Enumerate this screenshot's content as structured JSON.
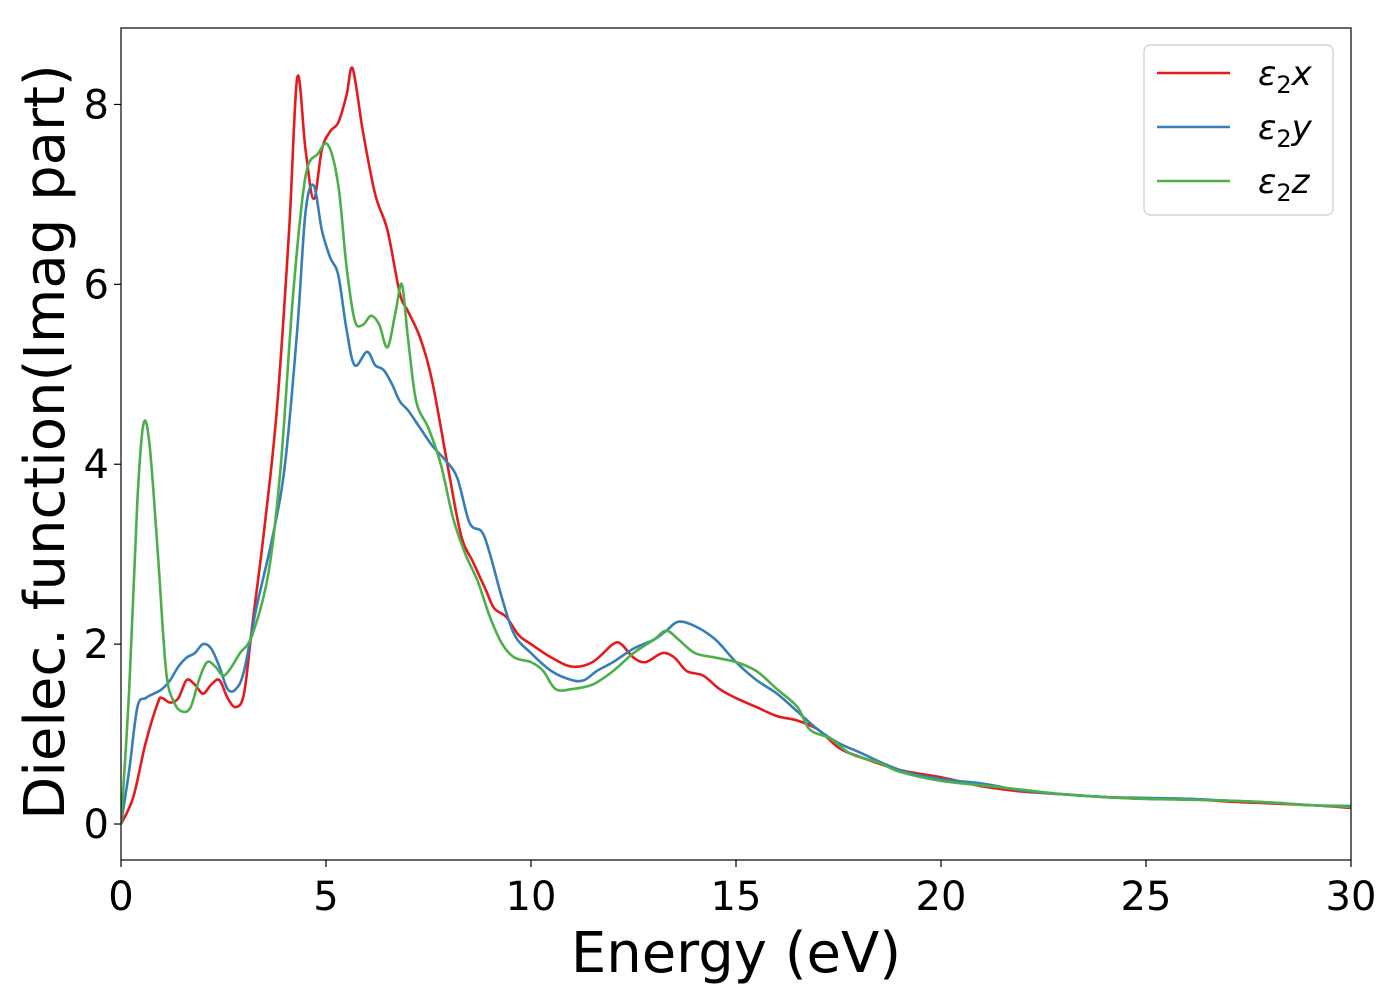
{
  "chart_data": {
    "type": "line",
    "title": "",
    "xlabel": "Energy (eV)",
    "ylabel": "Dielec. function(Imag part)",
    "xlim": [
      0,
      30
    ],
    "ylim": [
      -0.4,
      8.85
    ],
    "xticks": [
      0,
      5,
      10,
      15,
      20,
      25,
      30
    ],
    "yticks": [
      0,
      2,
      4,
      6,
      8
    ],
    "grid": false,
    "legend_position": "top-right",
    "series": [
      {
        "name": "ε2x",
        "legend_base": "ε",
        "legend_sub": "2",
        "legend_suffix": "x",
        "color": "#e41a1c",
        "points": [
          [
            0,
            0
          ],
          [
            0.3,
            0.3
          ],
          [
            0.6,
            0.9
          ],
          [
            0.9,
            1.35
          ],
          [
            1.0,
            1.4
          ],
          [
            1.2,
            1.35
          ],
          [
            1.4,
            1.4
          ],
          [
            1.6,
            1.6
          ],
          [
            1.8,
            1.55
          ],
          [
            2.0,
            1.45
          ],
          [
            2.2,
            1.55
          ],
          [
            2.4,
            1.6
          ],
          [
            2.6,
            1.4
          ],
          [
            2.8,
            1.3
          ],
          [
            3.0,
            1.45
          ],
          [
            3.2,
            2.2
          ],
          [
            3.5,
            3.3
          ],
          [
            3.8,
            4.6
          ],
          [
            4.1,
            6.6
          ],
          [
            4.3,
            8.3
          ],
          [
            4.5,
            7.5
          ],
          [
            4.7,
            6.95
          ],
          [
            4.9,
            7.5
          ],
          [
            5.1,
            7.7
          ],
          [
            5.3,
            7.8
          ],
          [
            5.5,
            8.1
          ],
          [
            5.65,
            8.4
          ],
          [
            5.9,
            7.7
          ],
          [
            6.2,
            7.0
          ],
          [
            6.5,
            6.6
          ],
          [
            6.8,
            5.9
          ],
          [
            7.0,
            5.7
          ],
          [
            7.3,
            5.4
          ],
          [
            7.6,
            4.9
          ],
          [
            8.0,
            3.9
          ],
          [
            8.3,
            3.2
          ],
          [
            8.6,
            2.9
          ],
          [
            8.9,
            2.6
          ],
          [
            9.1,
            2.4
          ],
          [
            9.4,
            2.3
          ],
          [
            9.7,
            2.1
          ],
          [
            10.0,
            2.0
          ],
          [
            10.5,
            1.85
          ],
          [
            11.0,
            1.75
          ],
          [
            11.5,
            1.8
          ],
          [
            12.0,
            2.0
          ],
          [
            12.2,
            2.0
          ],
          [
            12.5,
            1.85
          ],
          [
            12.8,
            1.8
          ],
          [
            13.2,
            1.9
          ],
          [
            13.5,
            1.85
          ],
          [
            13.8,
            1.7
          ],
          [
            14.2,
            1.65
          ],
          [
            14.6,
            1.5
          ],
          [
            15.0,
            1.4
          ],
          [
            15.5,
            1.3
          ],
          [
            16.0,
            1.2
          ],
          [
            16.5,
            1.15
          ],
          [
            17.0,
            1.05
          ],
          [
            17.5,
            0.85
          ],
          [
            18.0,
            0.75
          ],
          [
            19.0,
            0.6
          ],
          [
            20.0,
            0.52
          ],
          [
            21.0,
            0.42
          ],
          [
            22.0,
            0.36
          ],
          [
            23.0,
            0.33
          ],
          [
            24.0,
            0.3
          ],
          [
            25.0,
            0.28
          ],
          [
            26.0,
            0.28
          ],
          [
            27.0,
            0.25
          ],
          [
            28.0,
            0.23
          ],
          [
            29.0,
            0.21
          ],
          [
            30.0,
            0.18
          ]
        ]
      },
      {
        "name": "ε2y",
        "legend_base": "ε",
        "legend_sub": "2",
        "legend_suffix": "y",
        "color": "#377eb8",
        "points": [
          [
            0,
            0
          ],
          [
            0.2,
            0.6
          ],
          [
            0.4,
            1.3
          ],
          [
            0.6,
            1.4
          ],
          [
            0.8,
            1.45
          ],
          [
            1.0,
            1.5
          ],
          [
            1.2,
            1.6
          ],
          [
            1.4,
            1.75
          ],
          [
            1.6,
            1.85
          ],
          [
            1.8,
            1.9
          ],
          [
            2.0,
            2.0
          ],
          [
            2.2,
            1.95
          ],
          [
            2.4,
            1.75
          ],
          [
            2.6,
            1.5
          ],
          [
            2.8,
            1.5
          ],
          [
            3.0,
            1.7
          ],
          [
            3.3,
            2.4
          ],
          [
            3.7,
            3.2
          ],
          [
            4.0,
            4.0
          ],
          [
            4.3,
            5.5
          ],
          [
            4.5,
            6.8
          ],
          [
            4.7,
            7.1
          ],
          [
            4.9,
            6.6
          ],
          [
            5.1,
            6.3
          ],
          [
            5.3,
            6.1
          ],
          [
            5.5,
            5.5
          ],
          [
            5.7,
            5.1
          ],
          [
            6.0,
            5.25
          ],
          [
            6.2,
            5.1
          ],
          [
            6.4,
            5.05
          ],
          [
            6.6,
            4.9
          ],
          [
            6.8,
            4.7
          ],
          [
            7.0,
            4.6
          ],
          [
            7.3,
            4.4
          ],
          [
            7.6,
            4.2
          ],
          [
            7.9,
            4.05
          ],
          [
            8.2,
            3.85
          ],
          [
            8.5,
            3.35
          ],
          [
            8.8,
            3.25
          ],
          [
            9.0,
            3.0
          ],
          [
            9.3,
            2.5
          ],
          [
            9.6,
            2.1
          ],
          [
            10.0,
            1.9
          ],
          [
            10.5,
            1.7
          ],
          [
            11.0,
            1.6
          ],
          [
            11.3,
            1.6
          ],
          [
            11.6,
            1.7
          ],
          [
            12.0,
            1.8
          ],
          [
            12.5,
            1.95
          ],
          [
            13.0,
            2.05
          ],
          [
            13.3,
            2.15
          ],
          [
            13.6,
            2.25
          ],
          [
            14.0,
            2.2
          ],
          [
            14.5,
            2.05
          ],
          [
            15.0,
            1.8
          ],
          [
            15.5,
            1.6
          ],
          [
            16.0,
            1.45
          ],
          [
            16.5,
            1.25
          ],
          [
            17.0,
            1.05
          ],
          [
            17.5,
            0.9
          ],
          [
            18.0,
            0.8
          ],
          [
            19.0,
            0.6
          ],
          [
            20.0,
            0.5
          ],
          [
            21.0,
            0.45
          ],
          [
            22.0,
            0.37
          ],
          [
            23.0,
            0.33
          ],
          [
            24.0,
            0.3
          ],
          [
            25.0,
            0.29
          ],
          [
            26.0,
            0.28
          ],
          [
            27.0,
            0.26
          ],
          [
            28.0,
            0.24
          ],
          [
            29.0,
            0.21
          ],
          [
            30.0,
            0.2
          ]
        ]
      },
      {
        "name": "ε2z",
        "legend_base": "ε",
        "legend_sub": "2",
        "legend_suffix": "z",
        "color": "#4daf4a",
        "points": [
          [
            0,
            0
          ],
          [
            0.2,
            1.5
          ],
          [
            0.4,
            3.6
          ],
          [
            0.55,
            4.45
          ],
          [
            0.7,
            4.2
          ],
          [
            0.9,
            3.0
          ],
          [
            1.1,
            1.7
          ],
          [
            1.3,
            1.35
          ],
          [
            1.5,
            1.25
          ],
          [
            1.7,
            1.3
          ],
          [
            1.9,
            1.6
          ],
          [
            2.1,
            1.8
          ],
          [
            2.3,
            1.75
          ],
          [
            2.5,
            1.65
          ],
          [
            2.7,
            1.75
          ],
          [
            2.9,
            1.9
          ],
          [
            3.2,
            2.1
          ],
          [
            3.6,
            2.8
          ],
          [
            3.9,
            4.0
          ],
          [
            4.2,
            5.9
          ],
          [
            4.5,
            7.2
          ],
          [
            4.8,
            7.45
          ],
          [
            5.05,
            7.55
          ],
          [
            5.3,
            7.1
          ],
          [
            5.5,
            6.2
          ],
          [
            5.7,
            5.6
          ],
          [
            5.9,
            5.55
          ],
          [
            6.1,
            5.65
          ],
          [
            6.3,
            5.55
          ],
          [
            6.5,
            5.3
          ],
          [
            6.7,
            5.7
          ],
          [
            6.85,
            6.0
          ],
          [
            7.0,
            5.4
          ],
          [
            7.2,
            4.7
          ],
          [
            7.5,
            4.4
          ],
          [
            7.8,
            4.0
          ],
          [
            8.1,
            3.4
          ],
          [
            8.4,
            3.0
          ],
          [
            8.7,
            2.7
          ],
          [
            9.0,
            2.3
          ],
          [
            9.3,
            2.0
          ],
          [
            9.6,
            1.85
          ],
          [
            10.0,
            1.8
          ],
          [
            10.3,
            1.7
          ],
          [
            10.6,
            1.5
          ],
          [
            11.0,
            1.5
          ],
          [
            11.5,
            1.55
          ],
          [
            12.0,
            1.7
          ],
          [
            12.5,
            1.9
          ],
          [
            13.0,
            2.05
          ],
          [
            13.3,
            2.15
          ],
          [
            13.6,
            2.05
          ],
          [
            14.0,
            1.9
          ],
          [
            14.5,
            1.85
          ],
          [
            15.0,
            1.8
          ],
          [
            15.5,
            1.7
          ],
          [
            16.0,
            1.5
          ],
          [
            16.5,
            1.3
          ],
          [
            16.8,
            1.05
          ],
          [
            17.3,
            0.95
          ],
          [
            17.8,
            0.78
          ],
          [
            18.5,
            0.68
          ],
          [
            19.0,
            0.58
          ],
          [
            20.0,
            0.48
          ],
          [
            21.0,
            0.43
          ],
          [
            22.0,
            0.38
          ],
          [
            23.0,
            0.33
          ],
          [
            24.0,
            0.3
          ],
          [
            25.0,
            0.28
          ],
          [
            26.0,
            0.27
          ],
          [
            27.0,
            0.26
          ],
          [
            28.0,
            0.24
          ],
          [
            29.0,
            0.21
          ],
          [
            30.0,
            0.19
          ]
        ]
      }
    ]
  }
}
